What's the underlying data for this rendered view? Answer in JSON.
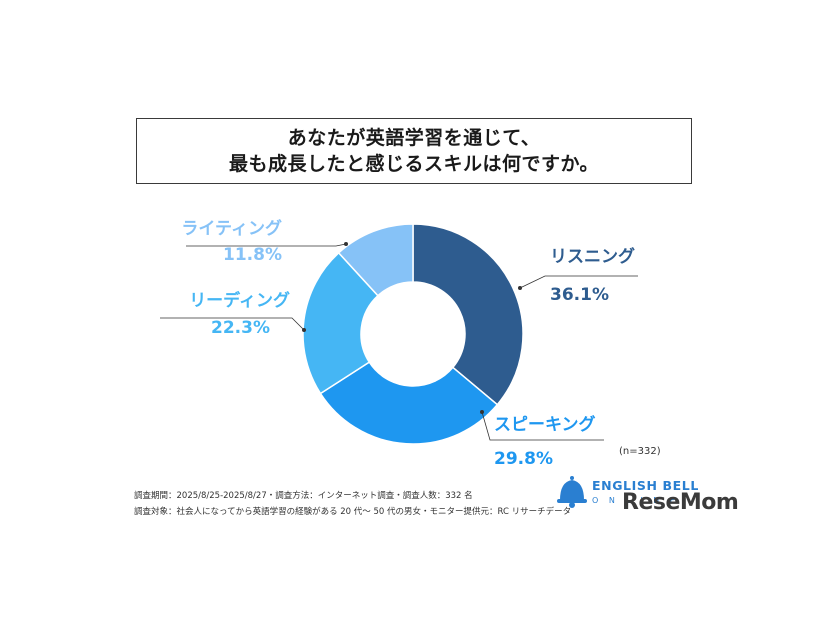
{
  "header": {
    "title_line1": "あなたが英語学習を通じて、",
    "title_line2": "最も成長したと感じるスキルは何ですか。"
  },
  "chart_data": {
    "type": "pie",
    "donut": true,
    "slices": [
      {
        "label": "リスニング",
        "value": 36.1,
        "display": "36.1%",
        "color": "#2e5c8f"
      },
      {
        "label": "スピーキング",
        "value": 29.8,
        "display": "29.8%",
        "color": "#1e97f0"
      },
      {
        "label": "リーディング",
        "value": 22.3,
        "display": "22.3%",
        "color": "#45b6f4"
      },
      {
        "label": "ライティング",
        "value": 11.8,
        "display": "11.8%",
        "color": "#86c2f7"
      }
    ],
    "start": "top",
    "direction": "clockwise"
  },
  "sample_size": "(n=332)",
  "footnotes": {
    "line1": "調査期間：2025/8/25-2025/8/27・調査方法：インターネット調査・調査人数：332 名",
    "line2": "調査対象：社会人になってから英語学習の経験がある 20 代～ 50 代の男女・モニター提供元：RC リサーチデータ"
  },
  "logo": {
    "brand": "ENGLISH BELL",
    "brand_sub": "O N L I N E",
    "watermark": "ReseMom"
  },
  "colors": {
    "label_dark": "#2e5c8f",
    "label_mid": "#1e97f0",
    "label_light": "#45b6f4",
    "label_lighter": "#86c2f7"
  }
}
